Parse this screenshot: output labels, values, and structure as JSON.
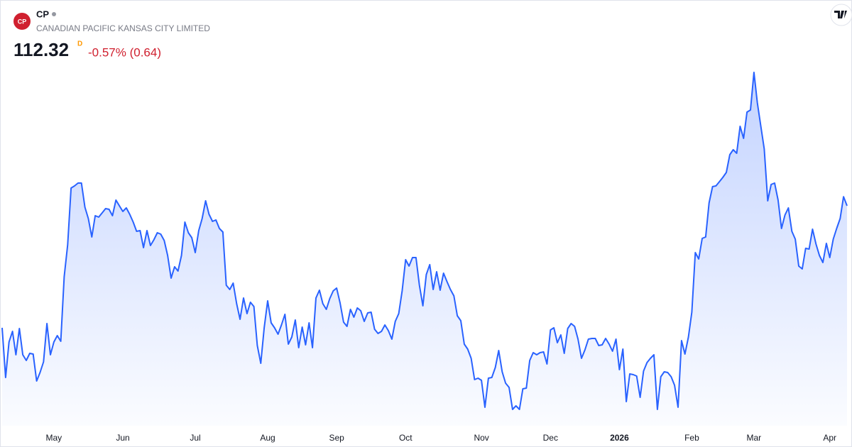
{
  "header": {
    "logo_text": "CP",
    "symbol": "CP",
    "name": "CANADIAN PACIFIC KANSAS CITY LIMITED",
    "price": "112.32",
    "price_flag": "D",
    "change": "-0.57% (0.64)"
  },
  "chart_data": {
    "type": "area",
    "series": [
      {
        "color": "#2962ff",
        "values": [
          103.72,
          100.22,
          102.72,
          103.47,
          101.82,
          103.67,
          101.82,
          101.42,
          101.92,
          101.87,
          99.97,
          100.57,
          101.32,
          104.02,
          101.82,
          102.72,
          103.17,
          102.77,
          107.32,
          109.57,
          113.57,
          113.72,
          113.92,
          113.92,
          112.22,
          111.42,
          110.12,
          111.62,
          111.52,
          111.82,
          112.12,
          112.07,
          111.62,
          112.72,
          112.32,
          111.92,
          112.17,
          111.72,
          111.17,
          110.52,
          110.57,
          109.37,
          110.57,
          109.52,
          109.92,
          110.42,
          110.32,
          109.87,
          108.82,
          107.22,
          108.02,
          107.72,
          108.82,
          111.17,
          110.42,
          110.07,
          109.02,
          110.57,
          111.42,
          112.67,
          111.72,
          111.22,
          111.32,
          110.72,
          110.47,
          106.72,
          106.42,
          106.87,
          105.42,
          104.32,
          105.82,
          104.72,
          105.52,
          105.22,
          102.47,
          101.22,
          103.72,
          105.62,
          104.07,
          103.72,
          103.27,
          103.92,
          104.67,
          102.57,
          103.07,
          104.27,
          102.32,
          103.77,
          102.52,
          104.07,
          102.32,
          105.82,
          106.37,
          105.42,
          105.02,
          105.77,
          106.32,
          106.52,
          105.47,
          104.12,
          103.82,
          105.02,
          104.47,
          105.12,
          104.92,
          104.17,
          104.77,
          104.82,
          103.62,
          103.32,
          103.47,
          103.92,
          103.52,
          102.92,
          104.17,
          104.72,
          106.32,
          108.52,
          108.07,
          108.67,
          108.67,
          106.72,
          105.27,
          107.47,
          108.17,
          106.42,
          107.67,
          106.37,
          107.57,
          106.97,
          106.42,
          105.97,
          104.57,
          104.22,
          102.57,
          102.22,
          101.57,
          100.07,
          100.17,
          100.02,
          98.12,
          100.17,
          100.22,
          100.92,
          102.12,
          100.62,
          99.82,
          99.52,
          97.97,
          98.22,
          97.97,
          99.42,
          99.47,
          101.42,
          101.97,
          101.82,
          101.97,
          102.02,
          101.17,
          103.57,
          103.72,
          102.67,
          103.22,
          101.92,
          103.67,
          104.02,
          103.82,
          102.92,
          101.57,
          102.17,
          102.92,
          102.97,
          102.97,
          102.47,
          102.52,
          102.97,
          102.57,
          102.07,
          102.92,
          100.77,
          102.22,
          98.52,
          100.47,
          100.42,
          100.32,
          98.82,
          100.67,
          101.27,
          101.57,
          101.82,
          97.97,
          100.27,
          100.62,
          100.57,
          100.27,
          99.67,
          98.12,
          102.82,
          101.87,
          103.07,
          104.82,
          109.02,
          108.57,
          110.02,
          110.12,
          112.52,
          113.67,
          113.72,
          114.02,
          114.32,
          114.67,
          115.92,
          116.27,
          116.02,
          117.92,
          117.07,
          118.92,
          119.07,
          121.72,
          119.57,
          117.92,
          116.32,
          112.67,
          113.82,
          113.92,
          112.72,
          110.72,
          111.67,
          112.17,
          110.52,
          109.97,
          108.07,
          107.87,
          109.32,
          109.27,
          110.67,
          109.62,
          108.82,
          108.32,
          109.67,
          108.67,
          109.97,
          110.72,
          111.42,
          112.96,
          112.32
        ]
      }
    ],
    "xticks": [
      {
        "value": 15,
        "label": "May"
      },
      {
        "value": 35,
        "label": "Jun"
      },
      {
        "value": 56,
        "label": "Jul"
      },
      {
        "value": 77,
        "label": "Aug"
      },
      {
        "value": 97,
        "label": "Sep"
      },
      {
        "value": 117,
        "label": "Oct"
      },
      {
        "value": 139,
        "label": "Nov"
      },
      {
        "value": 159,
        "label": "Dec"
      },
      {
        "value": 179,
        "label": "2026"
      },
      {
        "value": 200,
        "label": "Feb"
      },
      {
        "value": 218,
        "label": "Mar"
      },
      {
        "value": 240,
        "label": "Apr"
      }
    ]
  }
}
